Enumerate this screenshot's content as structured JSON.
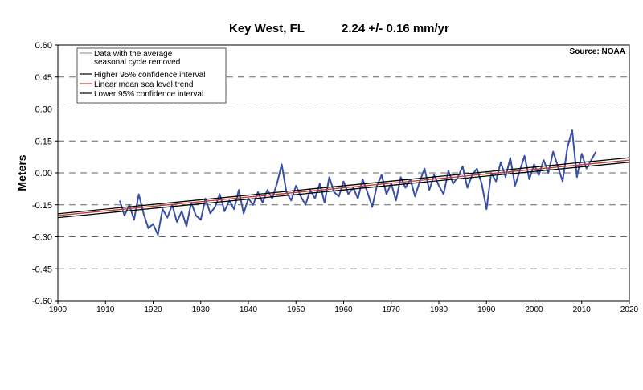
{
  "chart_data": {
    "type": "line",
    "title": "Key West, FL",
    "subtitle": "2.24 +/- 0.16 mm/yr",
    "source": "Source: NOAA",
    "xlabel": "",
    "ylabel": "Meters",
    "xlim": [
      1900,
      2020
    ],
    "ylim": [
      -0.6,
      0.6
    ],
    "xticks": [
      "1900",
      "1910",
      "1920",
      "1930",
      "1940",
      "1950",
      "1960",
      "1970",
      "1980",
      "1990",
      "2000",
      "2010",
      "2020"
    ],
    "yticks": [
      "0.60",
      "0.45",
      "0.30",
      "0.15",
      "0.00",
      "-0.15",
      "-0.30",
      "-0.45",
      "-0.60"
    ],
    "grid": "horizontal dashed",
    "legend_position": "top-left",
    "legend": [
      {
        "label": "Data with the average seasonal cycle removed",
        "color": "#9a9ab0"
      },
      {
        "label": "Higher 95% confidence interval",
        "color": "#000000"
      },
      {
        "label": "Linear mean sea level trend",
        "color": "#c0392b"
      },
      {
        "label": "Lower 95% confidence interval",
        "color": "#000000"
      }
    ],
    "series": [
      {
        "name": "Data with the average seasonal cycle removed",
        "color": "#3a4fa8",
        "x_start": 1913,
        "x_step": 1,
        "values": [
          -0.13,
          -0.2,
          -0.15,
          -0.22,
          -0.1,
          -0.19,
          -0.26,
          -0.24,
          -0.29,
          -0.17,
          -0.21,
          -0.15,
          -0.23,
          -0.18,
          -0.25,
          -0.14,
          -0.2,
          -0.22,
          -0.12,
          -0.19,
          -0.16,
          -0.1,
          -0.18,
          -0.13,
          -0.17,
          -0.08,
          -0.19,
          -0.12,
          -0.15,
          -0.09,
          -0.14,
          -0.08,
          -0.12,
          -0.05,
          0.04,
          -0.09,
          -0.13,
          -0.06,
          -0.11,
          -0.15,
          -0.08,
          -0.12,
          -0.05,
          -0.14,
          -0.02,
          -0.09,
          -0.11,
          -0.04,
          -0.1,
          -0.07,
          -0.12,
          -0.03,
          -0.09,
          -0.16,
          -0.06,
          -0.01,
          -0.1,
          -0.05,
          -0.13,
          -0.02,
          -0.07,
          -0.03,
          -0.11,
          -0.04,
          0.02,
          -0.08,
          -0.01,
          -0.06,
          -0.1,
          0.01,
          -0.05,
          -0.02,
          0.03,
          -0.07,
          -0.01,
          0.02,
          -0.05,
          -0.17,
          0.0,
          -0.04,
          0.05,
          -0.02,
          0.07,
          -0.06,
          0.01,
          0.08,
          -0.03,
          0.04,
          -0.01,
          0.06,
          0.0,
          0.1,
          0.03,
          -0.04,
          0.12,
          0.2,
          -0.02,
          0.09,
          0.02,
          0.06,
          0.1
        ]
      },
      {
        "name": "Higher 95% confidence interval",
        "color": "#000000",
        "x": [
          1900,
          2020
        ],
        "values": [
          -0.192,
          0.071
        ]
      },
      {
        "name": "Linear mean sea level trend",
        "color": "#c0392b",
        "x": [
          1900,
          2020
        ],
        "values": [
          -0.2,
          0.06
        ]
      },
      {
        "name": "Lower 95% confidence interval",
        "color": "#000000",
        "x": [
          1900,
          2020
        ],
        "values": [
          -0.21,
          0.05
        ]
      }
    ]
  }
}
